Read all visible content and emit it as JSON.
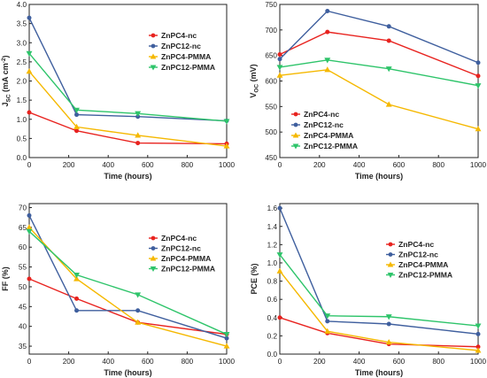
{
  "chart_data": [
    {
      "type": "line",
      "xlabel": "Time (hours)",
      "ylabel_main": "J",
      "ylabel_sub": "SC",
      "ylabel_unit": " (mA cm",
      "ylabel_sup": "-2",
      "ylabel_end": ")",
      "xlim": [
        0,
        1000
      ],
      "ylim": [
        0.0,
        4.0
      ],
      "xticks": [
        0,
        200,
        400,
        600,
        800,
        1000
      ],
      "yticks": [
        0.0,
        0.5,
        1.0,
        1.5,
        2.0,
        2.5,
        3.0,
        3.5,
        4.0
      ],
      "ytick_labels": [
        "0.0",
        "0.5",
        "1.0",
        "1.5",
        "2.0",
        "2.5",
        "3.0",
        "3.5",
        "4.0"
      ],
      "legend_placement": "top-right",
      "x": [
        0,
        240,
        550,
        1000
      ],
      "series": [
        {
          "name": "ZnPC4-nc",
          "color": "#e8231f",
          "marker": "circle",
          "values": [
            1.18,
            0.7,
            0.38,
            0.36
          ]
        },
        {
          "name": "ZnPC12-nc",
          "color": "#3f5f9e",
          "marker": "circle",
          "values": [
            3.65,
            1.12,
            1.07,
            0.96
          ]
        },
        {
          "name": "ZnPC4-PMMA",
          "color": "#f5b800",
          "marker": "triangle",
          "values": [
            2.25,
            0.8,
            0.58,
            0.3
          ]
        },
        {
          "name": "ZnPC12-PMMA",
          "color": "#2ec46a",
          "marker": "triangle-down",
          "values": [
            2.72,
            1.24,
            1.15,
            0.95
          ]
        }
      ]
    },
    {
      "type": "line",
      "xlabel": "Time (hours)",
      "ylabel_main": "V",
      "ylabel_sub": "OC",
      "ylabel_unit": " (mV)",
      "ylabel_sup": "",
      "ylabel_end": "",
      "xlim": [
        0,
        1000
      ],
      "ylim": [
        450,
        750
      ],
      "xticks": [
        0,
        200,
        400,
        600,
        800,
        1000
      ],
      "yticks": [
        450,
        500,
        550,
        600,
        650,
        700,
        750
      ],
      "ytick_labels": [
        "450",
        "500",
        "550",
        "600",
        "650",
        "700",
        "750"
      ],
      "legend_placement": "bottom-left",
      "x": [
        0,
        240,
        550,
        1000
      ],
      "series": [
        {
          "name": "ZnPC4-nc",
          "color": "#e8231f",
          "marker": "circle",
          "values": [
            652,
            696,
            679,
            610
          ]
        },
        {
          "name": "ZnPC12-nc",
          "color": "#3f5f9e",
          "marker": "circle",
          "values": [
            643,
            737,
            707,
            636
          ]
        },
        {
          "name": "ZnPC4-PMMA",
          "color": "#f5b800",
          "marker": "triangle",
          "values": [
            611,
            622,
            554,
            506
          ]
        },
        {
          "name": "ZnPC12-PMMA",
          "color": "#2ec46a",
          "marker": "triangle-down",
          "values": [
            627,
            641,
            624,
            591
          ]
        }
      ]
    },
    {
      "type": "line",
      "xlabel": "Time (hours)",
      "ylabel_main": "FF",
      "ylabel_sub": "",
      "ylabel_unit": " (%)",
      "ylabel_sup": "",
      "ylabel_end": "",
      "xlim": [
        0,
        1000
      ],
      "ylim": [
        33,
        71
      ],
      "xticks": [
        0,
        200,
        400,
        600,
        800,
        1000
      ],
      "yticks": [
        35,
        40,
        45,
        50,
        55,
        60,
        65,
        70
      ],
      "ytick_labels": [
        "35",
        "40",
        "45",
        "50",
        "55",
        "60",
        "65",
        "70"
      ],
      "legend_placement": "top-right",
      "x": [
        0,
        240,
        550,
        1000
      ],
      "series": [
        {
          "name": "ZnPC4-nc",
          "color": "#e8231f",
          "marker": "circle",
          "values": [
            52,
            47,
            41,
            38
          ]
        },
        {
          "name": "ZnPC12-nc",
          "color": "#3f5f9e",
          "marker": "circle",
          "values": [
            68,
            44,
            44,
            37
          ]
        },
        {
          "name": "ZnPC4-PMMA",
          "color": "#f5b800",
          "marker": "triangle",
          "values": [
            65,
            52,
            41,
            35
          ]
        },
        {
          "name": "ZnPC12-PMMA",
          "color": "#2ec46a",
          "marker": "triangle-down",
          "values": [
            64,
            53,
            48,
            38
          ]
        }
      ]
    },
    {
      "type": "line",
      "xlabel": "Time (hours)",
      "ylabel_main": "PCE",
      "ylabel_sub": "",
      "ylabel_unit": " (%)",
      "ylabel_sup": "",
      "ylabel_end": "",
      "xlim": [
        0,
        1000
      ],
      "ylim": [
        0.0,
        1.65
      ],
      "xticks": [
        0,
        200,
        400,
        600,
        800,
        1000
      ],
      "yticks": [
        0.0,
        0.2,
        0.4,
        0.6,
        0.8,
        1.0,
        1.2,
        1.4,
        1.6
      ],
      "ytick_labels": [
        "0.0",
        "0.2",
        "0.4",
        "0.6",
        "0.8",
        "1.0",
        "1.2",
        "1.4",
        "1.6"
      ],
      "legend_placement": "top-right",
      "x": [
        0,
        240,
        550,
        1000
      ],
      "series": [
        {
          "name": "ZnPC4-nc",
          "color": "#e8231f",
          "marker": "circle",
          "values": [
            0.4,
            0.23,
            0.11,
            0.08
          ]
        },
        {
          "name": "ZnPC12-nc",
          "color": "#3f5f9e",
          "marker": "circle",
          "values": [
            1.6,
            0.36,
            0.33,
            0.22
          ]
        },
        {
          "name": "ZnPC4-PMMA",
          "color": "#f5b800",
          "marker": "triangle",
          "values": [
            0.91,
            0.25,
            0.13,
            0.04
          ]
        },
        {
          "name": "ZnPC12-PMMA",
          "color": "#2ec46a",
          "marker": "triangle-down",
          "values": [
            1.09,
            0.42,
            0.41,
            0.31
          ]
        }
      ]
    }
  ]
}
